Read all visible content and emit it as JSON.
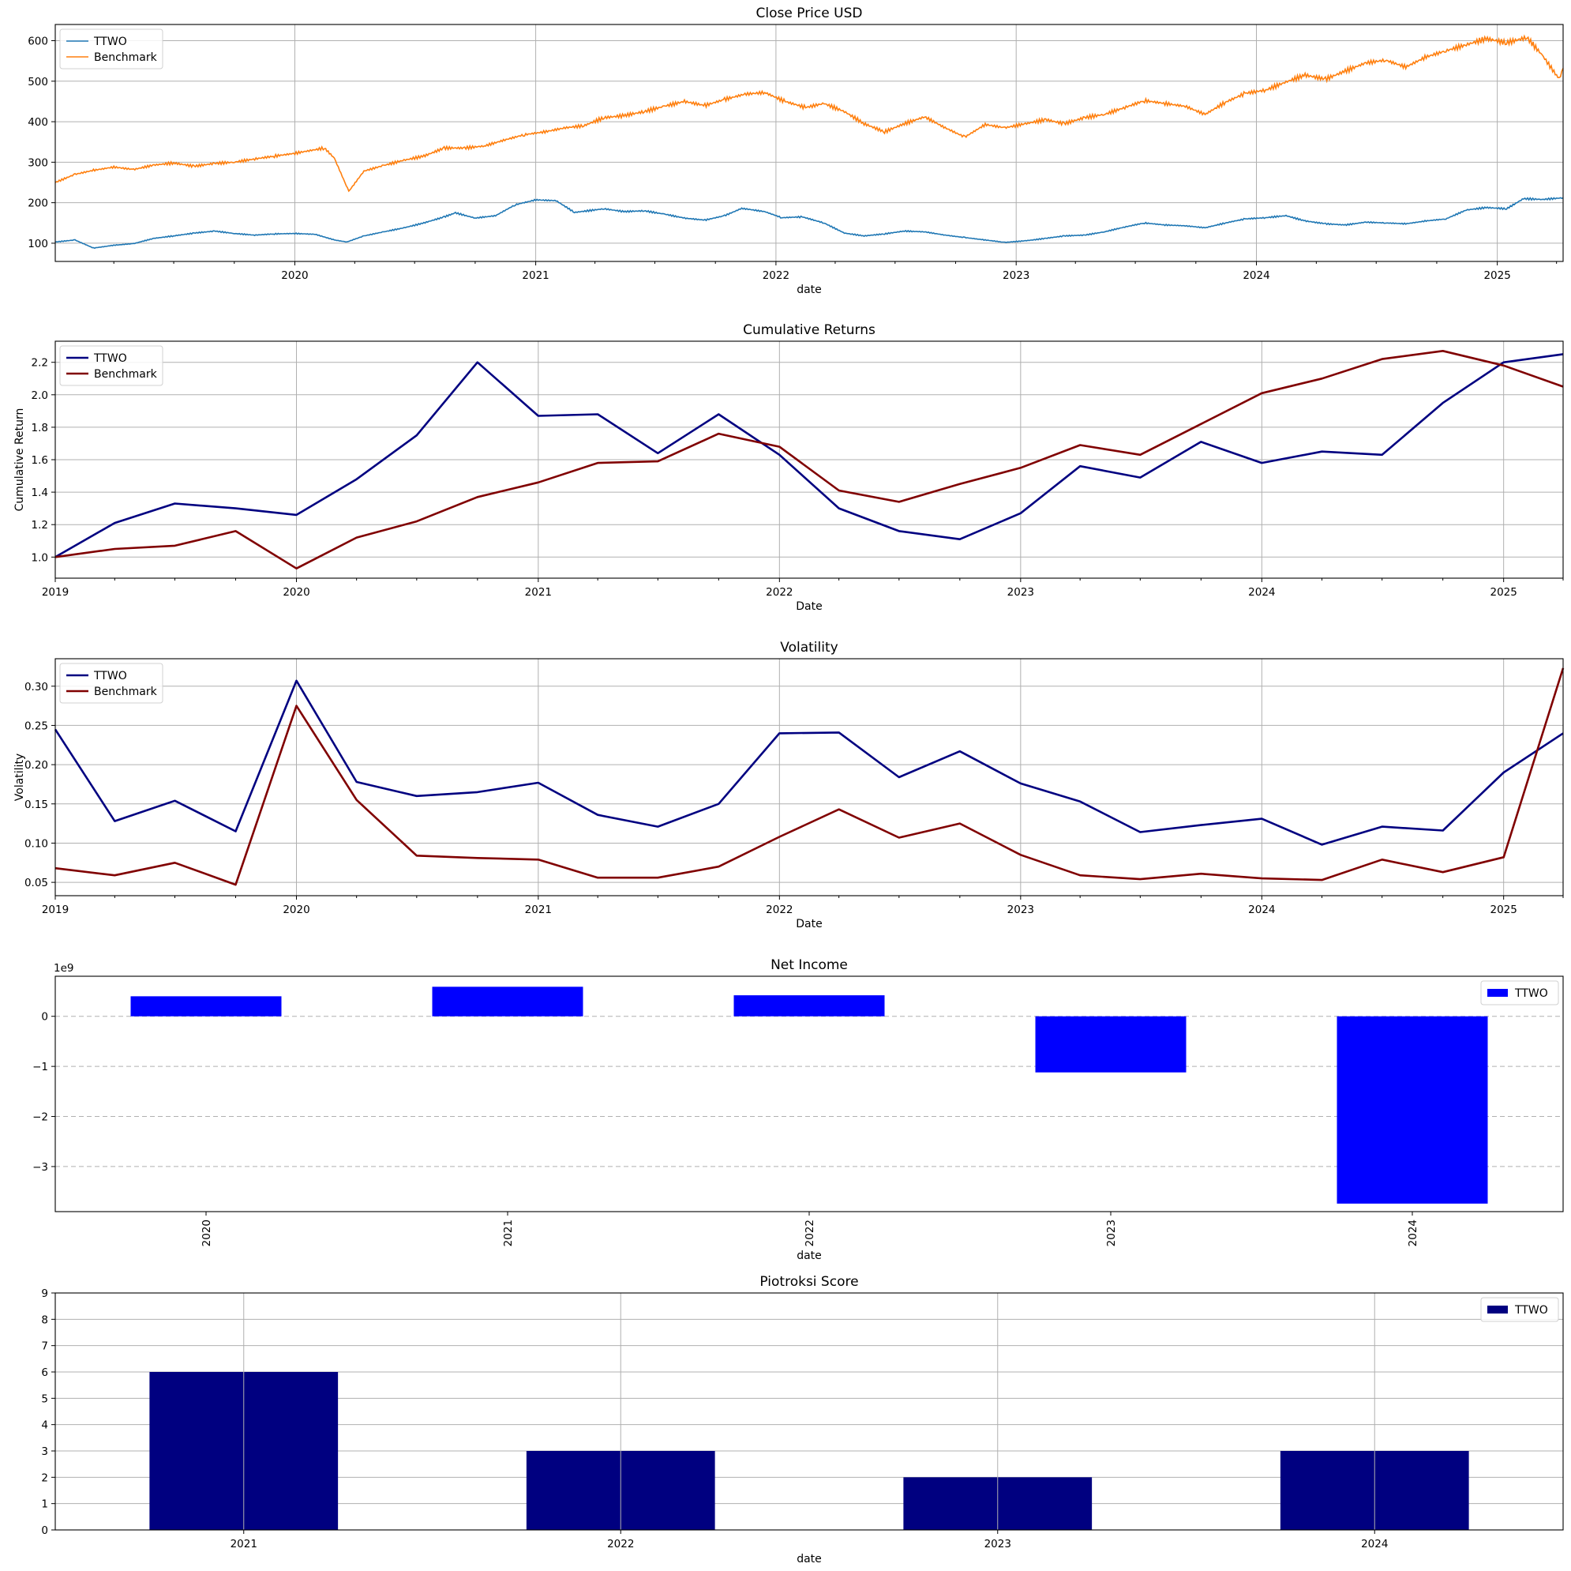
{
  "chart_data": [
    {
      "type": "line",
      "title": "Close Price USD",
      "xlabel": "date",
      "ylabel": "",
      "x_range": [
        "2019-01-02",
        "2025-04-11"
      ],
      "ylim": [
        55,
        640
      ],
      "yticks": [
        100,
        200,
        300,
        400,
        500,
        600
      ],
      "xticks": [
        "2020",
        "2021",
        "2022",
        "2023",
        "2024",
        "2025"
      ],
      "grid": true,
      "legend": "top-left",
      "series": [
        {
          "name": "TTWO",
          "color": "#1f77b4",
          "points": [
            [
              "2019-01-02",
              103
            ],
            [
              "2019-02-01",
              108
            ],
            [
              "2019-03-01",
              88
            ],
            [
              "2019-04-01",
              95
            ],
            [
              "2019-05-01",
              99
            ],
            [
              "2019-06-01",
              112
            ],
            [
              "2019-07-01",
              118
            ],
            [
              "2019-08-01",
              125
            ],
            [
              "2019-09-01",
              130
            ],
            [
              "2019-10-01",
              124
            ],
            [
              "2019-11-01",
              120
            ],
            [
              "2019-12-01",
              123
            ],
            [
              "2020-01-01",
              124
            ],
            [
              "2020-02-01",
              122
            ],
            [
              "2020-03-01",
              108
            ],
            [
              "2020-03-20",
              103
            ],
            [
              "2020-04-15",
              118
            ],
            [
              "2020-05-15",
              128
            ],
            [
              "2020-06-15",
              138
            ],
            [
              "2020-07-15",
              150
            ],
            [
              "2020-08-15",
              165
            ],
            [
              "2020-09-01",
              175
            ],
            [
              "2020-10-01",
              162
            ],
            [
              "2020-11-01",
              168
            ],
            [
              "2020-12-01",
              195
            ],
            [
              "2021-01-01",
              207
            ],
            [
              "2021-02-01",
              205
            ],
            [
              "2021-03-01",
              176
            ],
            [
              "2021-04-15",
              185
            ],
            [
              "2021-05-15",
              178
            ],
            [
              "2021-06-15",
              180
            ],
            [
              "2021-07-15",
              172
            ],
            [
              "2021-08-15",
              162
            ],
            [
              "2021-09-15",
              157
            ],
            [
              "2021-10-15",
              168
            ],
            [
              "2021-11-10",
              186
            ],
            [
              "2021-12-15",
              178
            ],
            [
              "2022-01-10",
              163
            ],
            [
              "2022-02-10",
              165
            ],
            [
              "2022-03-15",
              150
            ],
            [
              "2022-04-15",
              125
            ],
            [
              "2022-05-15",
              118
            ],
            [
              "2022-06-15",
              123
            ],
            [
              "2022-07-15",
              130
            ],
            [
              "2022-08-15",
              128
            ],
            [
              "2022-09-15",
              120
            ],
            [
              "2022-10-15",
              114
            ],
            [
              "2022-11-15",
              108
            ],
            [
              "2022-12-15",
              102
            ],
            [
              "2023-01-15",
              106
            ],
            [
              "2023-02-15",
              112
            ],
            [
              "2023-03-15",
              118
            ],
            [
              "2023-04-15",
              120
            ],
            [
              "2023-05-15",
              128
            ],
            [
              "2023-06-15",
              140
            ],
            [
              "2023-07-15",
              150
            ],
            [
              "2023-08-15",
              145
            ],
            [
              "2023-09-15",
              143
            ],
            [
              "2023-10-15",
              138
            ],
            [
              "2023-11-15",
              150
            ],
            [
              "2023-12-15",
              160
            ],
            [
              "2024-01-15",
              163
            ],
            [
              "2024-02-15",
              168
            ],
            [
              "2024-03-15",
              155
            ],
            [
              "2024-04-15",
              148
            ],
            [
              "2024-05-15",
              145
            ],
            [
              "2024-06-15",
              152
            ],
            [
              "2024-07-15",
              150
            ],
            [
              "2024-08-15",
              148
            ],
            [
              "2024-09-15",
              155
            ],
            [
              "2024-10-15",
              160
            ],
            [
              "2024-11-15",
              182
            ],
            [
              "2024-12-15",
              188
            ],
            [
              "2025-01-15",
              185
            ],
            [
              "2025-02-10",
              210
            ],
            [
              "2025-03-10",
              208
            ],
            [
              "2025-04-11",
              212
            ]
          ]
        },
        {
          "name": "Benchmark",
          "color": "#ff7f0e",
          "points": [
            [
              "2019-01-02",
              250
            ],
            [
              "2019-02-01",
              270
            ],
            [
              "2019-03-01",
              280
            ],
            [
              "2019-04-01",
              288
            ],
            [
              "2019-05-01",
              282
            ],
            [
              "2019-06-01",
              293
            ],
            [
              "2019-07-01",
              298
            ],
            [
              "2019-08-01",
              290
            ],
            [
              "2019-09-01",
              297
            ],
            [
              "2019-10-01",
              300
            ],
            [
              "2019-11-01",
              308
            ],
            [
              "2019-12-01",
              315
            ],
            [
              "2020-01-01",
              322
            ],
            [
              "2020-02-15",
              335
            ],
            [
              "2020-03-01",
              310
            ],
            [
              "2020-03-23",
              228
            ],
            [
              "2020-04-15",
              278
            ],
            [
              "2020-05-15",
              292
            ],
            [
              "2020-06-15",
              305
            ],
            [
              "2020-07-15",
              315
            ],
            [
              "2020-08-15",
              335
            ],
            [
              "2020-09-15",
              335
            ],
            [
              "2020-10-15",
              340
            ],
            [
              "2020-11-15",
              355
            ],
            [
              "2020-12-15",
              368
            ],
            [
              "2021-01-15",
              375
            ],
            [
              "2021-02-15",
              385
            ],
            [
              "2021-03-15",
              390
            ],
            [
              "2021-04-15",
              410
            ],
            [
              "2021-05-15",
              415
            ],
            [
              "2021-06-15",
              425
            ],
            [
              "2021-07-15",
              438
            ],
            [
              "2021-08-15",
              450
            ],
            [
              "2021-09-15",
              440
            ],
            [
              "2021-10-15",
              455
            ],
            [
              "2021-11-15",
              468
            ],
            [
              "2021-12-15",
              472
            ],
            [
              "2022-01-15",
              450
            ],
            [
              "2022-02-15",
              435
            ],
            [
              "2022-03-15",
              445
            ],
            [
              "2022-04-15",
              425
            ],
            [
              "2022-05-15",
              395
            ],
            [
              "2022-06-15",
              375
            ],
            [
              "2022-07-15",
              395
            ],
            [
              "2022-08-15",
              412
            ],
            [
              "2022-09-15",
              385
            ],
            [
              "2022-10-15",
              362
            ],
            [
              "2022-11-15",
              393
            ],
            [
              "2022-12-15",
              385
            ],
            [
              "2023-01-15",
              395
            ],
            [
              "2023-02-15",
              405
            ],
            [
              "2023-03-15",
              395
            ],
            [
              "2023-04-15",
              410
            ],
            [
              "2023-05-15",
              418
            ],
            [
              "2023-06-15",
              435
            ],
            [
              "2023-07-15",
              452
            ],
            [
              "2023-08-15",
              445
            ],
            [
              "2023-09-15",
              438
            ],
            [
              "2023-10-15",
              418
            ],
            [
              "2023-11-15",
              448
            ],
            [
              "2023-12-15",
              470
            ],
            [
              "2024-01-15",
              478
            ],
            [
              "2024-02-15",
              498
            ],
            [
              "2024-03-15",
              515
            ],
            [
              "2024-04-15",
              505
            ],
            [
              "2024-05-15",
              525
            ],
            [
              "2024-06-15",
              545
            ],
            [
              "2024-07-15",
              552
            ],
            [
              "2024-08-15",
              535
            ],
            [
              "2024-09-15",
              560
            ],
            [
              "2024-10-15",
              575
            ],
            [
              "2024-11-15",
              590
            ],
            [
              "2024-12-15",
              605
            ],
            [
              "2025-01-15",
              595
            ],
            [
              "2025-02-15",
              608
            ],
            [
              "2025-03-10",
              565
            ],
            [
              "2025-04-05",
              505
            ],
            [
              "2025-04-11",
              532
            ]
          ]
        }
      ]
    },
    {
      "type": "line",
      "title": "Cumulative Returns",
      "xlabel": "Date",
      "ylabel": "Cumulative Return",
      "x_range": [
        "2019-01-01",
        "2025-04-01"
      ],
      "ylim": [
        0.87,
        2.33
      ],
      "yticks": [
        1.0,
        1.2,
        1.4,
        1.6,
        1.8,
        2.0,
        2.2
      ],
      "xticks": [
        "2019",
        "2020",
        "2021",
        "2022",
        "2023",
        "2024",
        "2025"
      ],
      "grid": true,
      "legend": "top-left",
      "x": [
        "2019-01-01",
        "2019-04-01",
        "2019-07-01",
        "2019-10-01",
        "2020-01-01",
        "2020-04-01",
        "2020-07-01",
        "2020-10-01",
        "2021-01-01",
        "2021-04-01",
        "2021-07-01",
        "2021-10-01",
        "2022-01-01",
        "2022-04-01",
        "2022-07-01",
        "2022-10-01",
        "2023-01-01",
        "2023-04-01",
        "2023-07-01",
        "2023-10-01",
        "2024-01-01",
        "2024-04-01",
        "2024-07-01",
        "2024-10-01",
        "2025-01-01",
        "2025-04-01"
      ],
      "series": [
        {
          "name": "TTWO",
          "color": "#000080",
          "values": [
            1.0,
            1.21,
            1.33,
            1.3,
            1.26,
            1.48,
            1.75,
            2.2,
            1.87,
            1.88,
            1.64,
            1.88,
            1.63,
            1.3,
            1.16,
            1.11,
            1.27,
            1.56,
            1.49,
            1.71,
            1.58,
            1.65,
            1.63,
            1.95,
            2.2,
            2.25
          ]
        },
        {
          "name": "Benchmark",
          "color": "#800000",
          "values": [
            1.0,
            1.05,
            1.07,
            1.16,
            0.93,
            1.12,
            1.22,
            1.37,
            1.46,
            1.58,
            1.59,
            1.76,
            1.68,
            1.41,
            1.34,
            1.45,
            1.55,
            1.69,
            1.63,
            1.82,
            2.01,
            2.1,
            2.22,
            2.27,
            2.18,
            2.05
          ]
        }
      ]
    },
    {
      "type": "line",
      "title": "Volatility",
      "xlabel": "Date",
      "ylabel": "Volatility",
      "x_range": [
        "2019-01-01",
        "2025-04-01"
      ],
      "ylim": [
        0.033,
        0.335
      ],
      "yticks": [
        0.05,
        0.1,
        0.15,
        0.2,
        0.25,
        0.3
      ],
      "xticks": [
        "2019",
        "2020",
        "2021",
        "2022",
        "2023",
        "2024",
        "2025"
      ],
      "grid": true,
      "legend": "top-left",
      "x": [
        "2019-01-01",
        "2019-04-01",
        "2019-07-01",
        "2019-10-01",
        "2020-01-01",
        "2020-04-01",
        "2020-07-01",
        "2020-10-01",
        "2021-01-01",
        "2021-04-01",
        "2021-07-01",
        "2021-10-01",
        "2022-01-01",
        "2022-04-01",
        "2022-07-01",
        "2022-10-01",
        "2023-01-01",
        "2023-04-01",
        "2023-07-01",
        "2023-10-01",
        "2024-01-01",
        "2024-04-01",
        "2024-07-01",
        "2024-10-01",
        "2025-01-01",
        "2025-04-01"
      ],
      "series": [
        {
          "name": "TTWO",
          "color": "#000080",
          "values": [
            0.245,
            0.128,
            0.154,
            0.115,
            0.307,
            0.178,
            0.16,
            0.165,
            0.177,
            0.136,
            0.121,
            0.15,
            0.24,
            0.241,
            0.184,
            0.217,
            0.176,
            0.153,
            0.114,
            0.123,
            0.131,
            0.098,
            0.121,
            0.116,
            0.19,
            0.24
          ]
        },
        {
          "name": "Benchmark",
          "color": "#800000",
          "values": [
            0.068,
            0.059,
            0.075,
            0.047,
            0.275,
            0.155,
            0.084,
            0.081,
            0.079,
            0.056,
            0.056,
            0.07,
            0.108,
            0.143,
            0.107,
            0.125,
            0.085,
            0.059,
            0.054,
            0.061,
            0.055,
            0.053,
            0.079,
            0.063,
            0.082,
            0.323
          ]
        }
      ]
    },
    {
      "type": "bar",
      "title": "Net Income",
      "xlabel": "date",
      "ylabel": "",
      "offset_label": "1e9",
      "categories": [
        "2020",
        "2021",
        "2022",
        "2023",
        "2024"
      ],
      "ylim": [
        -3.9,
        0.8
      ],
      "yticks": [
        0,
        -1,
        -2,
        -3
      ],
      "ytick_labels": [
        "0",
        "−1",
        "−2",
        "−3"
      ],
      "grid": "y-dashed",
      "legend": "top-right",
      "series": [
        {
          "name": "TTWO",
          "color": "#0000ff",
          "values": [
            0.4,
            0.59,
            0.42,
            -1.12,
            -3.74
          ]
        }
      ]
    },
    {
      "type": "bar",
      "title": "Piotroksi Score",
      "xlabel": "date",
      "ylabel": "",
      "categories": [
        "2021",
        "2022",
        "2023",
        "2024"
      ],
      "ylim": [
        0,
        9
      ],
      "yticks": [
        0,
        1,
        2,
        3,
        4,
        5,
        6,
        7,
        8,
        9
      ],
      "grid": true,
      "legend": "top-right",
      "series": [
        {
          "name": "TTWO",
          "color": "#000080",
          "values": [
            6,
            3,
            2,
            3
          ]
        }
      ]
    }
  ]
}
